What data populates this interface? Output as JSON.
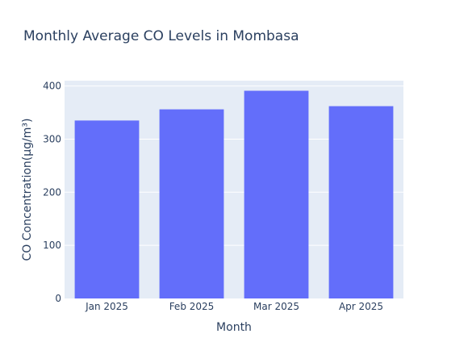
{
  "chart_data": {
    "type": "bar",
    "title": "Monthly Average CO Levels in Mombasa",
    "xlabel": "Month",
    "ylabel": "CO Concentration(µg/m³)",
    "categories": [
      "Jan 2025",
      "Feb 2025",
      "Mar 2025",
      "Apr 2025"
    ],
    "values": [
      335,
      356,
      391,
      362
    ],
    "ylim": [
      0,
      410
    ],
    "yticks": [
      "0",
      "100",
      "200",
      "300",
      "400"
    ],
    "grid": true,
    "legend": "none",
    "colors": {
      "bar": "#636efa",
      "plot_bg": "#e5ecf6",
      "grid": "#ffffff",
      "text": "#2a3f5f"
    }
  }
}
